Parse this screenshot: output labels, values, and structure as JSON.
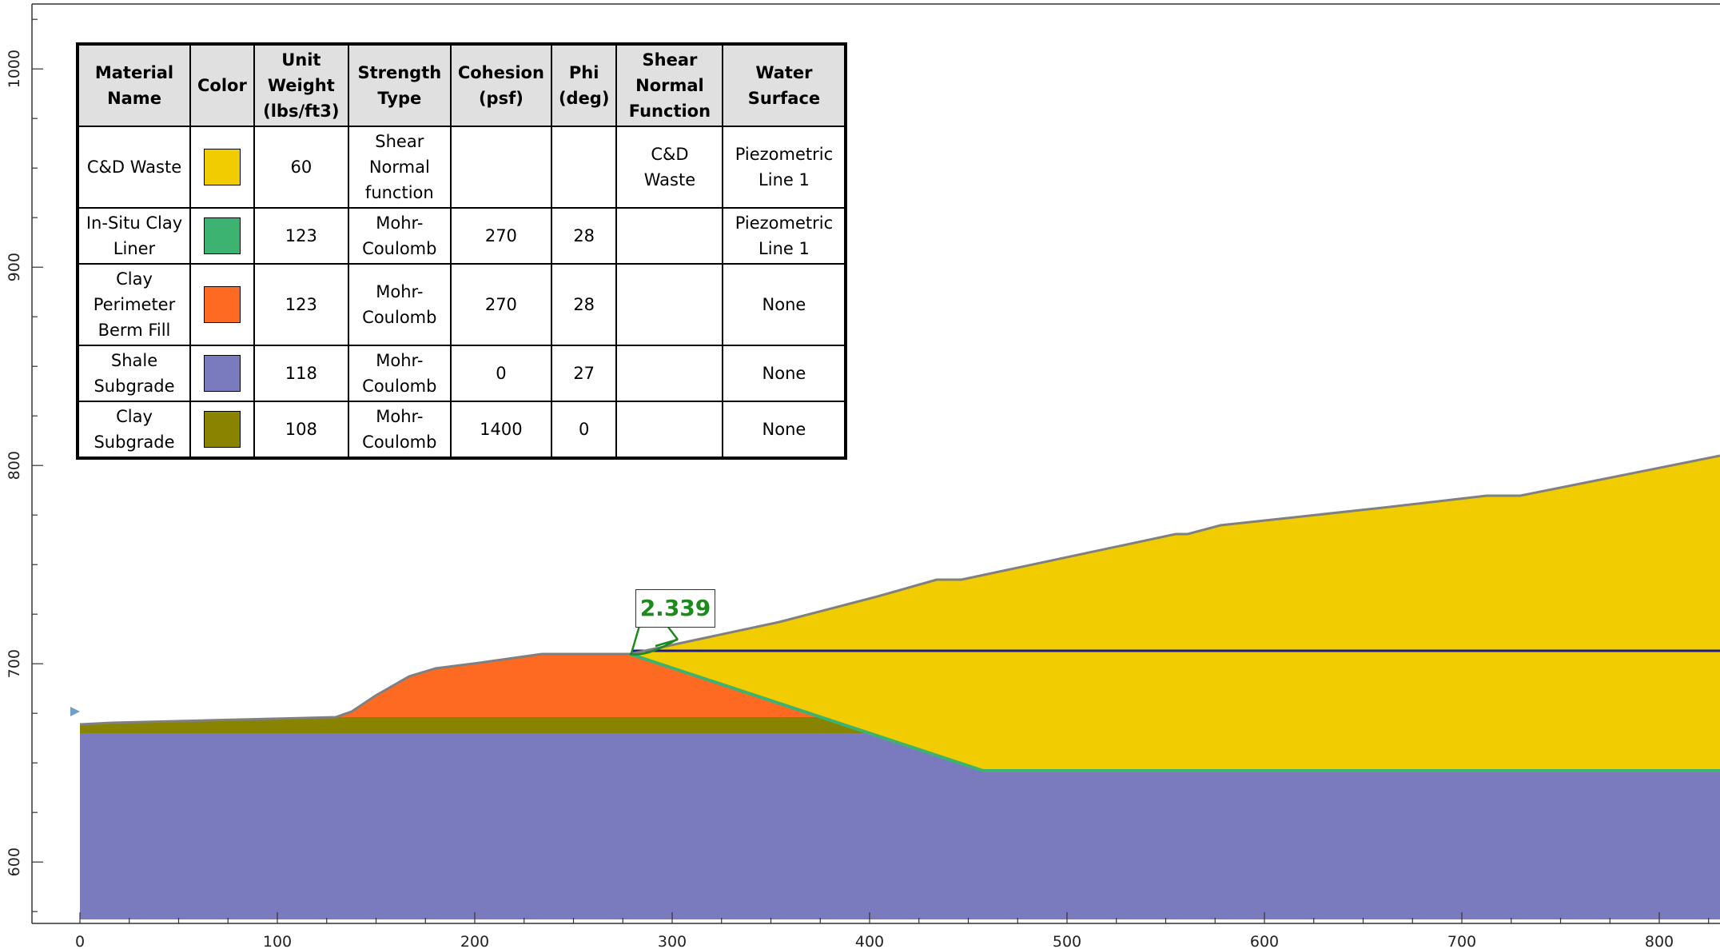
{
  "table": {
    "headers": [
      "Material Name",
      "Color",
      "Unit Weight (lbs/ft3)",
      "Strength Type",
      "Cohesion (psf)",
      "Phi (deg)",
      "Shear Normal Function",
      "Water Surface"
    ],
    "rows": [
      {
        "name": "C&D Waste",
        "color": "#f0cc00",
        "unit_weight": "60",
        "strength_type": "Shear Normal function",
        "cohesion": "",
        "phi": "",
        "snf": "C&D Waste",
        "water": "Piezometric Line 1"
      },
      {
        "name": "In-Situ Clay Liner",
        "color": "#3cb371",
        "unit_weight": "123",
        "strength_type": "Mohr-Coulomb",
        "cohesion": "270",
        "phi": "28",
        "snf": "",
        "water": "Piezometric Line 1"
      },
      {
        "name": "Clay Perimeter Berm Fill",
        "color": "#ff6a22",
        "unit_weight": "123",
        "strength_type": "Mohr-Coulomb",
        "cohesion": "270",
        "phi": "28",
        "snf": "",
        "water": "None"
      },
      {
        "name": "Shale Subgrade",
        "color": "#7a7abf",
        "unit_weight": "118",
        "strength_type": "Mohr-Coulomb",
        "cohesion": "0",
        "phi": "27",
        "snf": "",
        "water": "None"
      },
      {
        "name": "Clay Subgrade",
        "color": "#888400",
        "unit_weight": "108",
        "strength_type": "Mohr-Coulomb",
        "cohesion": "1400",
        "phi": "0",
        "snf": "",
        "water": "None"
      }
    ]
  },
  "factor_of_safety": "2.339",
  "axes": {
    "x_ticks": [
      0,
      100,
      200,
      300,
      400,
      500,
      600,
      700,
      800
    ],
    "y_ticks": [
      600,
      700,
      800,
      900,
      1000
    ]
  },
  "colors": {
    "waste": "#f0cc00",
    "liner": "#3cb371",
    "berm": "#ff6a22",
    "shale": "#7a7abf",
    "clay": "#888400",
    "water": "#1a1a8c",
    "slip": "#1e8a1e",
    "ground_line": "#808080"
  }
}
